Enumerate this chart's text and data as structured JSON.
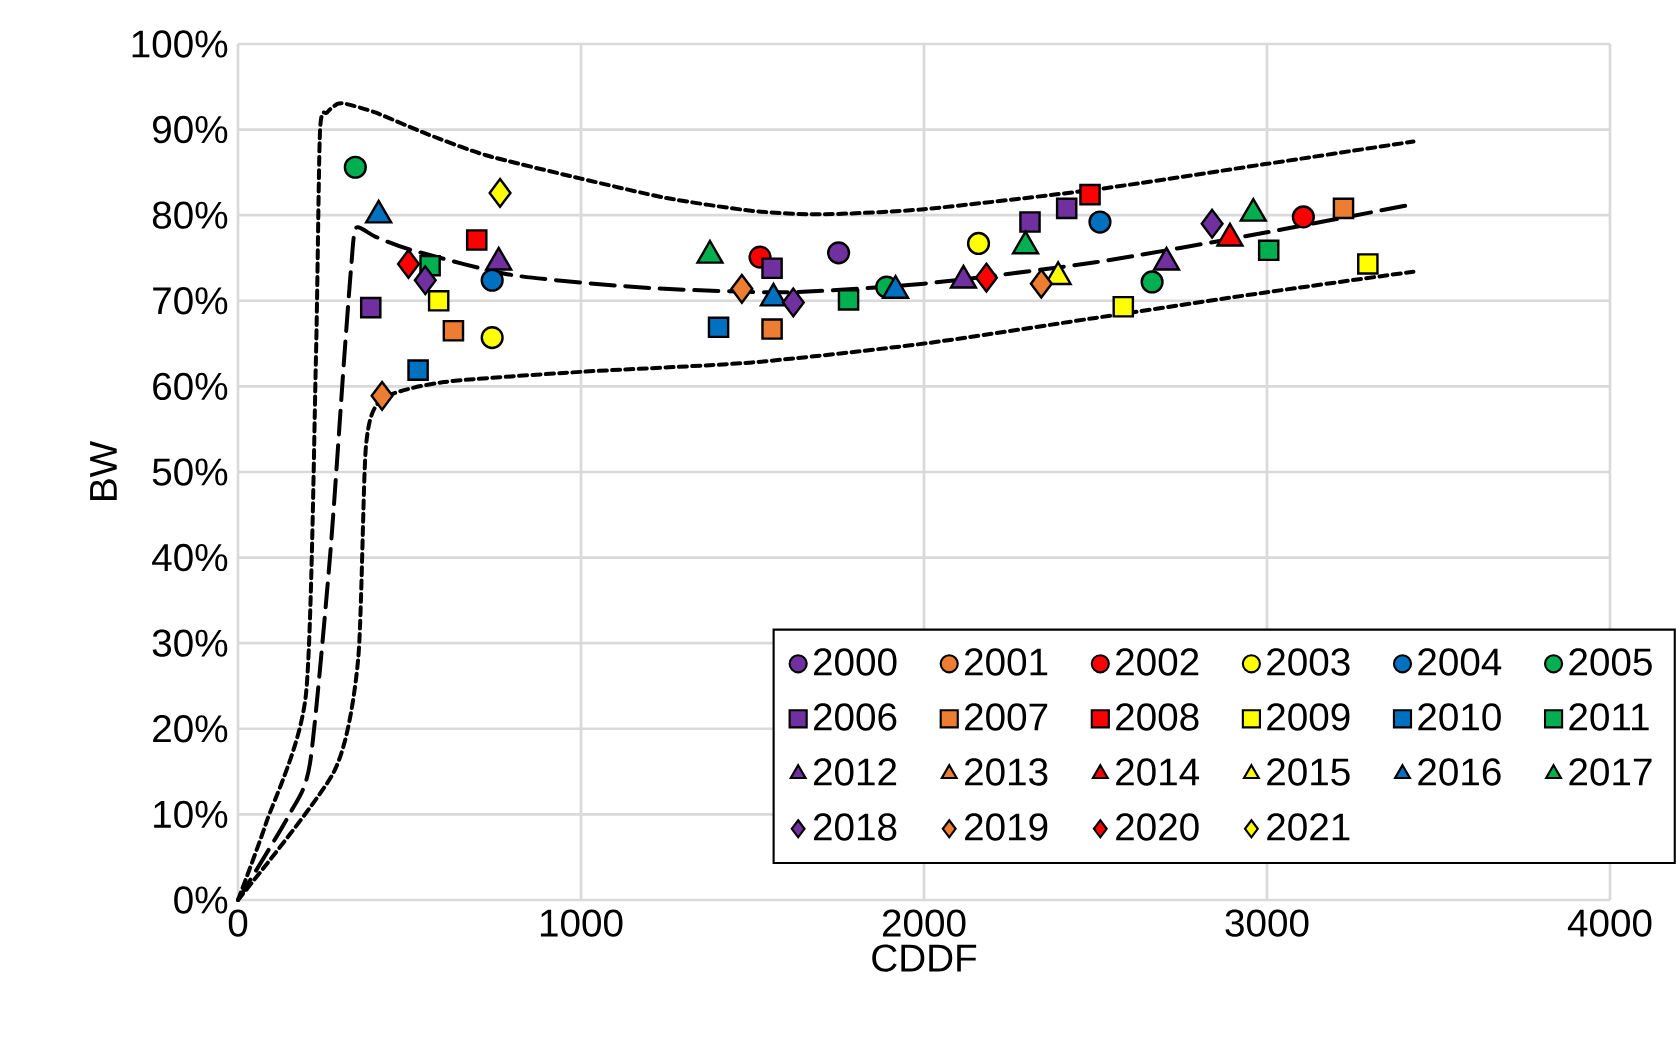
{
  "chart_data": {
    "type": "scatter",
    "xlabel": "CDDF",
    "ylabel": "BW",
    "xlim": [
      0,
      4000
    ],
    "xticks": [
      0,
      1000,
      2000,
      3000,
      4000
    ],
    "ylim": [
      0,
      100
    ],
    "yticks": [
      {
        "value": 0,
        "label": "0%"
      },
      {
        "value": 10,
        "label": "10%"
      },
      {
        "value": 20,
        "label": "20%"
      },
      {
        "value": 30,
        "label": "30%"
      },
      {
        "value": 40,
        "label": "40%"
      },
      {
        "value": 50,
        "label": "50%"
      },
      {
        "value": 60,
        "label": "60%"
      },
      {
        "value": 70,
        "label": "70%"
      },
      {
        "value": 80,
        "label": "80%"
      },
      {
        "value": 90,
        "label": "90%"
      },
      {
        "value": 100,
        "label": "100%"
      }
    ],
    "grid": true,
    "legend": "bottom right",
    "series": [
      {
        "name": "2000",
        "color": "#7030a0",
        "marker": "circle",
        "x": [
          1751
        ],
        "values": [
          75.6
        ]
      },
      {
        "name": "2001",
        "color": "#ed7d31",
        "marker": "circle"
      },
      {
        "name": "2002",
        "color": "#ff0000",
        "marker": "circle",
        "x": [
          1522,
          3106
        ],
        "values": [
          75.1,
          79.8
        ]
      },
      {
        "name": "2003",
        "color": "#ffff00",
        "marker": "circle",
        "x": [
          741,
          2159
        ],
        "values": [
          65.7,
          76.7
        ]
      },
      {
        "name": "2004",
        "color": "#0070c0",
        "marker": "circle",
        "x": [
          741,
          2513
        ],
        "values": [
          72.4,
          79.2
        ]
      },
      {
        "name": "2005",
        "color": "#00b050",
        "marker": "circle",
        "x": [
          342,
          1891,
          2665
        ],
        "values": [
          85.6,
          71.6,
          72.2
        ]
      },
      {
        "name": "2006",
        "color": "#7030a0",
        "marker": "square",
        "x": [
          387,
          1557,
          2309,
          2416
        ],
        "values": [
          69.2,
          73.8,
          79.2,
          80.8
        ]
      },
      {
        "name": "2007",
        "color": "#ed7d31",
        "marker": "square",
        "x": [
          628,
          1557,
          3223
        ],
        "values": [
          66.5,
          66.7,
          80.8
        ]
      },
      {
        "name": "2008",
        "color": "#ff0000",
        "marker": "square",
        "x": [
          696,
          2484
        ],
        "values": [
          77.1,
          82.4
        ]
      },
      {
        "name": "2009",
        "color": "#ffff00",
        "marker": "square",
        "x": [
          585,
          2581,
          3294
        ],
        "values": [
          70.0,
          69.3,
          74.3
        ]
      },
      {
        "name": "2010",
        "color": "#0070c0",
        "marker": "square",
        "x": [
          525,
          1401
        ],
        "values": [
          61.9,
          66.9
        ]
      },
      {
        "name": "2011",
        "color": "#00b050",
        "marker": "square",
        "x": [
          560,
          1780,
          3005
        ],
        "values": [
          74.1,
          70.1,
          75.9
        ]
      },
      {
        "name": "2012",
        "color": "#7030a0",
        "marker": "triangle",
        "x": [
          760,
          2115,
          2707
        ],
        "values": [
          74.5,
          72.4,
          74.5
        ]
      },
      {
        "name": "2013",
        "color": "#ed7d31",
        "marker": "triangle"
      },
      {
        "name": "2014",
        "color": "#ff0000",
        "marker": "triangle",
        "x": [
          2892
        ],
        "values": [
          77.3
        ]
      },
      {
        "name": "2015",
        "color": "#ffff00",
        "marker": "triangle",
        "x": [
          2391
        ],
        "values": [
          72.8
        ]
      },
      {
        "name": "2016",
        "color": "#0070c0",
        "marker": "triangle",
        "x": [
          410,
          1561,
          1917
        ],
        "values": [
          80.0,
          70.3,
          71.2
        ]
      },
      {
        "name": "2017",
        "color": "#00b050",
        "marker": "triangle",
        "x": [
          1376,
          2296,
          2960
        ],
        "values": [
          75.3,
          76.4,
          80.2
        ]
      },
      {
        "name": "2018",
        "color": "#7030a0",
        "marker": "diamond",
        "x": [
          546,
          1619,
          2840
        ],
        "values": [
          72.4,
          69.8,
          79.0
        ]
      },
      {
        "name": "2019",
        "color": "#ed7d31",
        "marker": "diamond",
        "x": [
          420,
          1469,
          2342
        ],
        "values": [
          58.9,
          71.4,
          72.0
        ]
      },
      {
        "name": "2020",
        "color": "#ff0000",
        "marker": "diamond",
        "x": [
          497,
          2182
        ],
        "values": [
          74.3,
          72.7
        ]
      },
      {
        "name": "2021",
        "color": "#ffff00",
        "marker": "diamond",
        "x": [
          764
        ],
        "values": [
          82.6
        ]
      },
      {
        "type": "line",
        "color": "#000000",
        "line_style": "dotted",
        "marker": "none",
        "x": [
          0,
          82,
          198,
          227,
          239,
          260,
          290,
          315,
          400,
          550,
          723,
          997,
          1250,
          1500,
          1697,
          2000,
          2500,
          3000,
          3427
        ],
        "values": [
          0,
          9,
          24,
          63,
          89.8,
          92,
          93,
          93,
          92,
          89.5,
          87,
          84.3,
          82,
          80.5,
          80.1,
          80.7,
          83,
          86,
          88.6
        ]
      },
      {
        "type": "line",
        "color": "#000000",
        "line_style": "dashed",
        "marker": "none",
        "x": [
          0,
          150,
          210,
          268,
          309,
          330,
          344,
          400,
          500,
          800,
          1200,
          1600,
          2000,
          2500,
          3000,
          3427
        ],
        "values": [
          0,
          10,
          16,
          40,
          63,
          74,
          78.5,
          77.5,
          76,
          73,
          71.5,
          71,
          72,
          74.5,
          78,
          81.3
        ]
      },
      {
        "type": "line",
        "color": "#000000",
        "line_style": "dotted",
        "marker": "none",
        "x": [
          0,
          280,
          350,
          373,
          420,
          600,
          1000,
          1500,
          2000,
          2500,
          3000,
          3427
        ],
        "values": [
          0,
          15,
          28,
          53,
          58.5,
          60.5,
          61.7,
          62.8,
          65,
          68,
          71,
          73.4
        ]
      }
    ]
  }
}
